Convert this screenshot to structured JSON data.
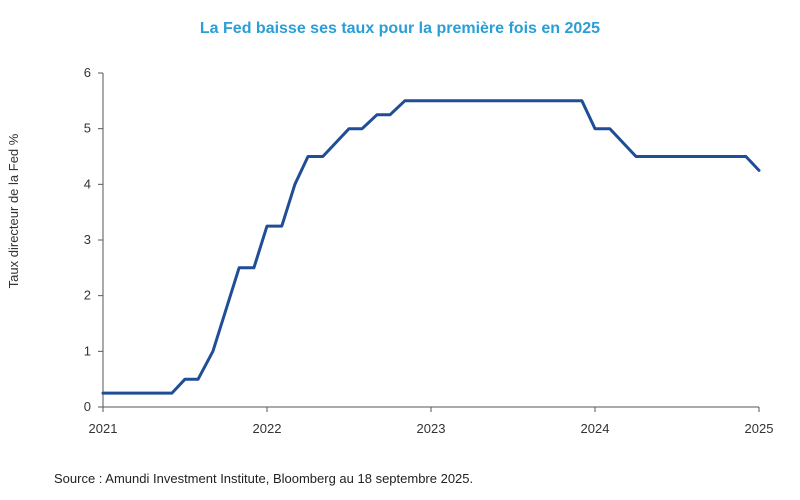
{
  "title": "La Fed baisse ses taux pour la première  fois en 2025",
  "source": "Source : Amundi Investment Institute, Bloomberg au 18 septembre 2025.",
  "colors": {
    "title": "#2a9fd6",
    "line": "#1f4e96",
    "axis": "#555555"
  },
  "chart_data": {
    "type": "line",
    "ylabel": "Taux directeur de la Fed %",
    "xlabel": "",
    "xlim": [
      2021,
      2025
    ],
    "ylim": [
      0,
      6
    ],
    "x_ticks": [
      "2021",
      "2022",
      "2023",
      "2024",
      "2025"
    ],
    "y_ticks": [
      "0",
      "1",
      "2",
      "3",
      "4",
      "5",
      "6"
    ],
    "grid": false,
    "series": [
      {
        "points": [
          [
            2021.0,
            0.25
          ],
          [
            2021.42,
            0.25
          ],
          [
            2021.5,
            0.5
          ],
          [
            2021.58,
            0.5
          ],
          [
            2021.67,
            1.0
          ],
          [
            2021.83,
            2.5
          ],
          [
            2021.92,
            2.5
          ],
          [
            2022.0,
            3.25
          ],
          [
            2022.09,
            3.25
          ],
          [
            2022.17,
            4.0
          ],
          [
            2022.25,
            4.5
          ],
          [
            2022.34,
            4.5
          ],
          [
            2022.42,
            4.75
          ],
          [
            2022.5,
            5.0
          ],
          [
            2022.58,
            5.0
          ],
          [
            2022.67,
            5.25
          ],
          [
            2022.75,
            5.25
          ],
          [
            2022.84,
            5.5
          ],
          [
            2023.92,
            5.5
          ],
          [
            2024.0,
            5.0
          ],
          [
            2024.09,
            5.0
          ],
          [
            2024.25,
            4.5
          ],
          [
            2024.92,
            4.5
          ],
          [
            2025.0,
            4.25
          ]
        ]
      }
    ]
  }
}
